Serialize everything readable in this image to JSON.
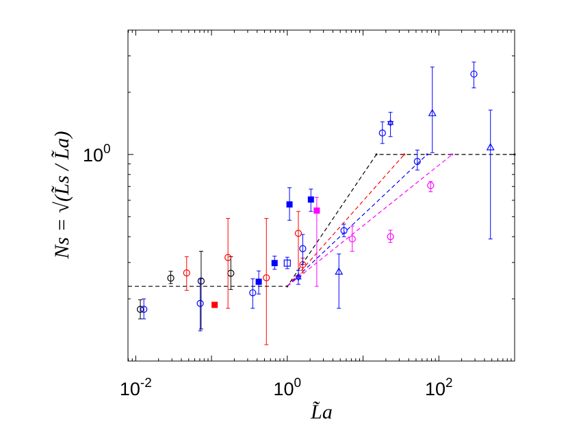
{
  "chart_data": {
    "type": "scatter",
    "x_scale": "log",
    "y_scale": "log",
    "xlim": [
      0.0079,
      1000
    ],
    "ylim": [
      0.1,
      4.0
    ],
    "xlabel": "L̃a",
    "ylabel": "Ns = √(L̃s / L̃a)",
    "x_tick_labels": [
      {
        "value": 0.01,
        "base": "10",
        "exp": "-2"
      },
      {
        "value": 1,
        "base": "10",
        "exp": "0"
      },
      {
        "value": 100,
        "base": "10",
        "exp": "2"
      }
    ],
    "y_tick_labels": [
      {
        "value": 1,
        "base": "10",
        "exp": "0"
      }
    ],
    "colors": {
      "black": "#000000",
      "red": "#ff0000",
      "blue": "#0000ff",
      "magenta": "#ff00ff"
    },
    "series": [
      {
        "name": "black circles",
        "color": "black",
        "marker": "circle-open",
        "points": [
          {
            "x": 0.0115,
            "y": 0.178,
            "lo": 0.16,
            "hi": 0.198
          },
          {
            "x": 0.029,
            "y": 0.252,
            "lo": 0.237,
            "hi": 0.272
          },
          {
            "x": 0.073,
            "y": 0.244,
            "lo": 0.143,
            "hi": 0.34
          },
          {
            "x": 0.18,
            "y": 0.266,
            "lo": 0.222,
            "hi": 0.32
          }
        ]
      },
      {
        "name": "red circles",
        "color": "red",
        "marker": "circle-open",
        "points": [
          {
            "x": 0.047,
            "y": 0.267,
            "lo": 0.22,
            "hi": 0.32
          },
          {
            "x": 0.165,
            "y": 0.317,
            "lo": 0.18,
            "hi": 0.49
          },
          {
            "x": 0.53,
            "y": 0.253,
            "lo": 0.12,
            "hi": 0.49
          },
          {
            "x": 1.4,
            "y": 0.415,
            "lo": 0.253,
            "hi": 0.53
          },
          {
            "x": 1.6,
            "y": 0.293,
            "lo": 0.267,
            "hi": 0.315
          }
        ]
      },
      {
        "name": "red squares",
        "color": "red",
        "marker": "square-filled",
        "points": [
          {
            "x": 0.11,
            "y": 0.187,
            "lo": null,
            "hi": null
          }
        ]
      },
      {
        "name": "blue circles",
        "color": "blue",
        "marker": "circle-open",
        "points": [
          {
            "x": 0.0128,
            "y": 0.178,
            "lo": 0.16,
            "hi": 0.2
          },
          {
            "x": 0.071,
            "y": 0.19,
            "lo": 0.14,
            "hi": 0.25
          },
          {
            "x": 0.35,
            "y": 0.214,
            "lo": 0.18,
            "hi": 0.25
          },
          {
            "x": 1.6,
            "y": 0.35,
            "lo": 0.294,
            "hi": 0.41
          },
          {
            "x": 5.6,
            "y": 0.428,
            "lo": 0.4,
            "hi": 0.46
          },
          {
            "x": 18,
            "y": 1.27,
            "lo": 1.13,
            "hi": 1.44
          },
          {
            "x": 52,
            "y": 0.925,
            "lo": 0.84,
            "hi": 1.05
          },
          {
            "x": 290,
            "y": 2.45,
            "lo": 2.1,
            "hi": 2.8
          }
        ]
      },
      {
        "name": "blue squares",
        "color": "blue",
        "marker": "square-filled",
        "points": [
          {
            "x": 0.42,
            "y": 0.242,
            "lo": 0.211,
            "hi": 0.273
          },
          {
            "x": 0.68,
            "y": 0.298,
            "lo": 0.278,
            "hi": 0.322
          },
          {
            "x": 1.07,
            "y": 0.573,
            "lo": 0.48,
            "hi": 0.69
          },
          {
            "x": 2.05,
            "y": 0.605,
            "lo": 0.53,
            "hi": 0.68
          }
        ]
      },
      {
        "name": "blue open squares",
        "color": "blue",
        "marker": "square-open",
        "points": [
          {
            "x": 1.0,
            "y": 0.298,
            "lo": 0.28,
            "hi": 0.318
          }
        ]
      },
      {
        "name": "blue triangles",
        "color": "blue",
        "marker": "triangle-open",
        "points": [
          {
            "x": 4.8,
            "y": 0.27,
            "lo": 0.18,
            "hi": 0.33
          },
          {
            "x": 82,
            "y": 1.58,
            "lo": 1.02,
            "hi": 2.65
          },
          {
            "x": 480,
            "y": 1.08,
            "lo": 0.39,
            "hi": 1.64
          }
        ]
      },
      {
        "name": "blue stars",
        "color": "blue",
        "marker": "star-open",
        "points": [
          {
            "x": 1.4,
            "y": 0.254,
            "lo": 0.235,
            "hi": 0.275
          },
          {
            "x": 23,
            "y": 1.42,
            "lo": 1.22,
            "hi": 1.6
          }
        ]
      },
      {
        "name": "magenta circles",
        "color": "magenta",
        "marker": "circle-open",
        "points": [
          {
            "x": 7.2,
            "y": 0.39,
            "lo": 0.34,
            "hi": 0.45
          },
          {
            "x": 23,
            "y": 0.4,
            "lo": 0.375,
            "hi": 0.43
          },
          {
            "x": 78,
            "y": 0.708,
            "lo": 0.66,
            "hi": 0.74
          }
        ]
      },
      {
        "name": "magenta squares",
        "color": "magenta",
        "marker": "square-filled",
        "points": [
          {
            "x": 2.45,
            "y": 0.535,
            "lo": 0.23,
            "hi": 0.62
          }
        ]
      }
    ],
    "reference_lines": [
      {
        "color": "black",
        "style": "dashed",
        "points": [
          [
            0.0079,
            0.23
          ],
          [
            1.0,
            0.23
          ],
          [
            15,
            1.0
          ],
          [
            1000,
            1.0
          ]
        ]
      },
      {
        "color": "red",
        "style": "dashed",
        "points": [
          [
            1.0,
            0.23
          ],
          [
            35,
            1.0
          ]
        ]
      },
      {
        "color": "blue",
        "style": "dashed",
        "points": [
          [
            1.0,
            0.23
          ],
          [
            70,
            1.0
          ]
        ]
      },
      {
        "color": "magenta",
        "style": "dashed",
        "points": [
          [
            1.0,
            0.23
          ],
          [
            150,
            1.0
          ]
        ]
      }
    ]
  }
}
